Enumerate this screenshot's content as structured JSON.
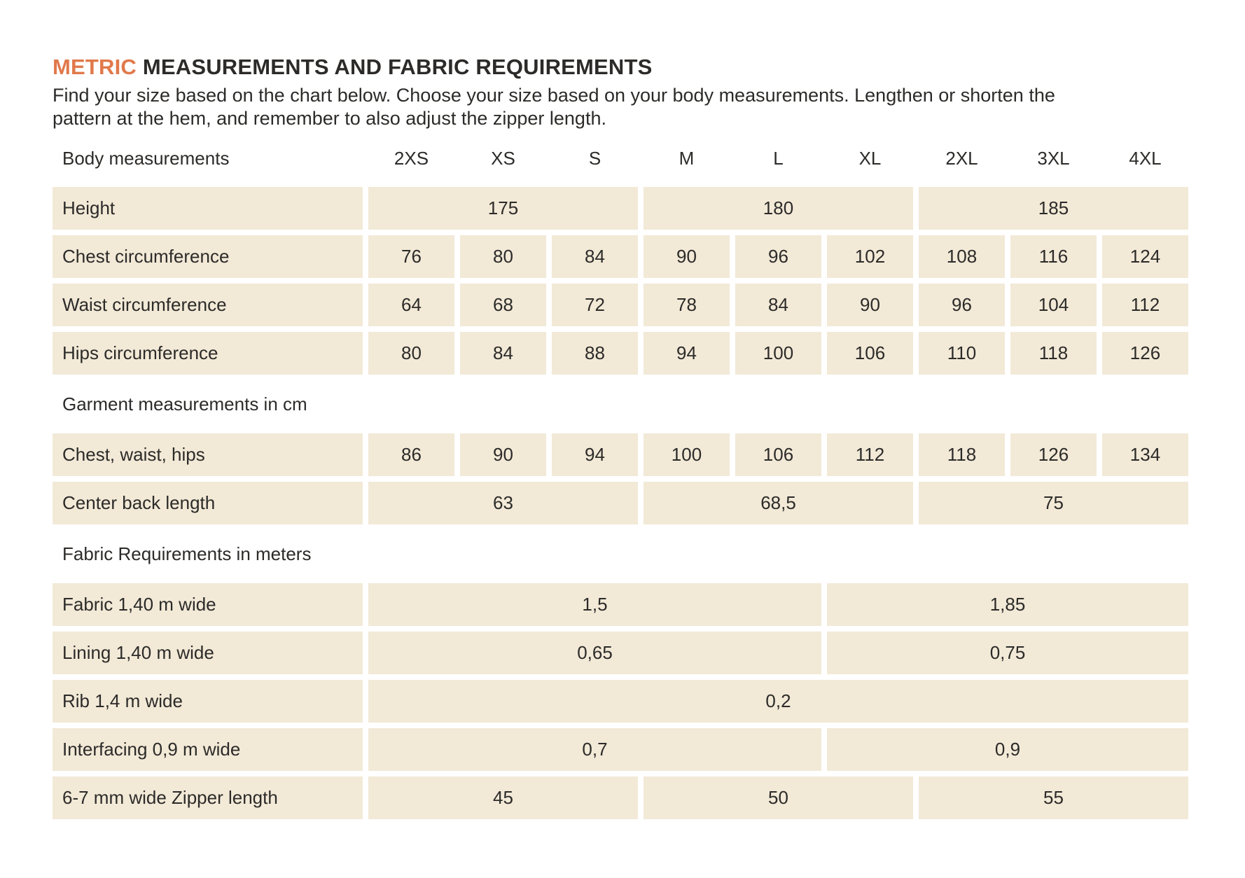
{
  "header": {
    "title_accent": "METRIC",
    "title_rest": " MEASUREMENTS AND FABRIC REQUIREMENTS",
    "intro_line1": "Find your size based on the chart below. Choose your size based on your body measurements.  Lengthen or shorten the",
    "intro_line2": "pattern at the hem, and remember to also adjust the zipper length."
  },
  "colors": {
    "accent": "#E1794B",
    "cell_background": "#F2E9D7",
    "text": "#2C2B29"
  },
  "table": {
    "column_header_label": "Body measurements",
    "size_columns": [
      "2XS",
      "XS",
      "S",
      "M",
      "L",
      "XL",
      "2XL",
      "3XL",
      "4XL"
    ],
    "groups": [
      {
        "section_title": "",
        "rows": [
          {
            "label": "Height",
            "cells": [
              {
                "value": "175",
                "span": 3
              },
              {
                "value": "180",
                "span": 3
              },
              {
                "value": "185",
                "span": 3
              }
            ]
          },
          {
            "label": "Chest circumference",
            "cells": [
              {
                "value": "76",
                "span": 1
              },
              {
                "value": "80",
                "span": 1
              },
              {
                "value": "84",
                "span": 1
              },
              {
                "value": "90",
                "span": 1
              },
              {
                "value": "96",
                "span": 1
              },
              {
                "value": "102",
                "span": 1
              },
              {
                "value": "108",
                "span": 1
              },
              {
                "value": "116",
                "span": 1
              },
              {
                "value": "124",
                "span": 1
              }
            ]
          },
          {
            "label": "Waist circumference",
            "cells": [
              {
                "value": "64",
                "span": 1
              },
              {
                "value": "68",
                "span": 1
              },
              {
                "value": "72",
                "span": 1
              },
              {
                "value": "78",
                "span": 1
              },
              {
                "value": "84",
                "span": 1
              },
              {
                "value": "90",
                "span": 1
              },
              {
                "value": "96",
                "span": 1
              },
              {
                "value": "104",
                "span": 1
              },
              {
                "value": "112",
                "span": 1
              }
            ]
          },
          {
            "label": "Hips circumference",
            "cells": [
              {
                "value": "80",
                "span": 1
              },
              {
                "value": "84",
                "span": 1
              },
              {
                "value": "88",
                "span": 1
              },
              {
                "value": "94",
                "span": 1
              },
              {
                "value": "100",
                "span": 1
              },
              {
                "value": "106",
                "span": 1
              },
              {
                "value": "110",
                "span": 1
              },
              {
                "value": "118",
                "span": 1
              },
              {
                "value": "126",
                "span": 1
              }
            ]
          }
        ]
      },
      {
        "section_title": "Garment measurements in cm",
        "rows": [
          {
            "label": "Chest, waist, hips",
            "cells": [
              {
                "value": "86",
                "span": 1
              },
              {
                "value": "90",
                "span": 1
              },
              {
                "value": "94",
                "span": 1
              },
              {
                "value": "100",
                "span": 1
              },
              {
                "value": "106",
                "span": 1
              },
              {
                "value": "112",
                "span": 1
              },
              {
                "value": "118",
                "span": 1
              },
              {
                "value": "126",
                "span": 1
              },
              {
                "value": "134",
                "span": 1
              }
            ]
          },
          {
            "label": "Center back length",
            "cells": [
              {
                "value": "63",
                "span": 3
              },
              {
                "value": "68,5",
                "span": 3
              },
              {
                "value": "75",
                "span": 3
              }
            ]
          }
        ]
      },
      {
        "section_title": "Fabric Requirements in meters",
        "rows": [
          {
            "label": "Fabric 1,40 m wide",
            "cells": [
              {
                "value": "1,5",
                "span": 5
              },
              {
                "value": "1,85",
                "span": 4
              }
            ]
          },
          {
            "label": "Lining 1,40 m wide",
            "cells": [
              {
                "value": "0,65",
                "span": 5
              },
              {
                "value": "0,75",
                "span": 4
              }
            ]
          },
          {
            "label": "Rib 1,4 m wide",
            "cells": [
              {
                "value": "0,2",
                "span": 9
              }
            ]
          },
          {
            "label": "Interfacing 0,9 m wide",
            "cells": [
              {
                "value": "0,7",
                "span": 5
              },
              {
                "value": "0,9",
                "span": 4
              }
            ]
          },
          {
            "label": "6-7 mm wide Zipper length",
            "cells": [
              {
                "value": "45",
                "span": 3
              },
              {
                "value": "50",
                "span": 3
              },
              {
                "value": "55",
                "span": 3
              }
            ]
          }
        ]
      }
    ]
  }
}
